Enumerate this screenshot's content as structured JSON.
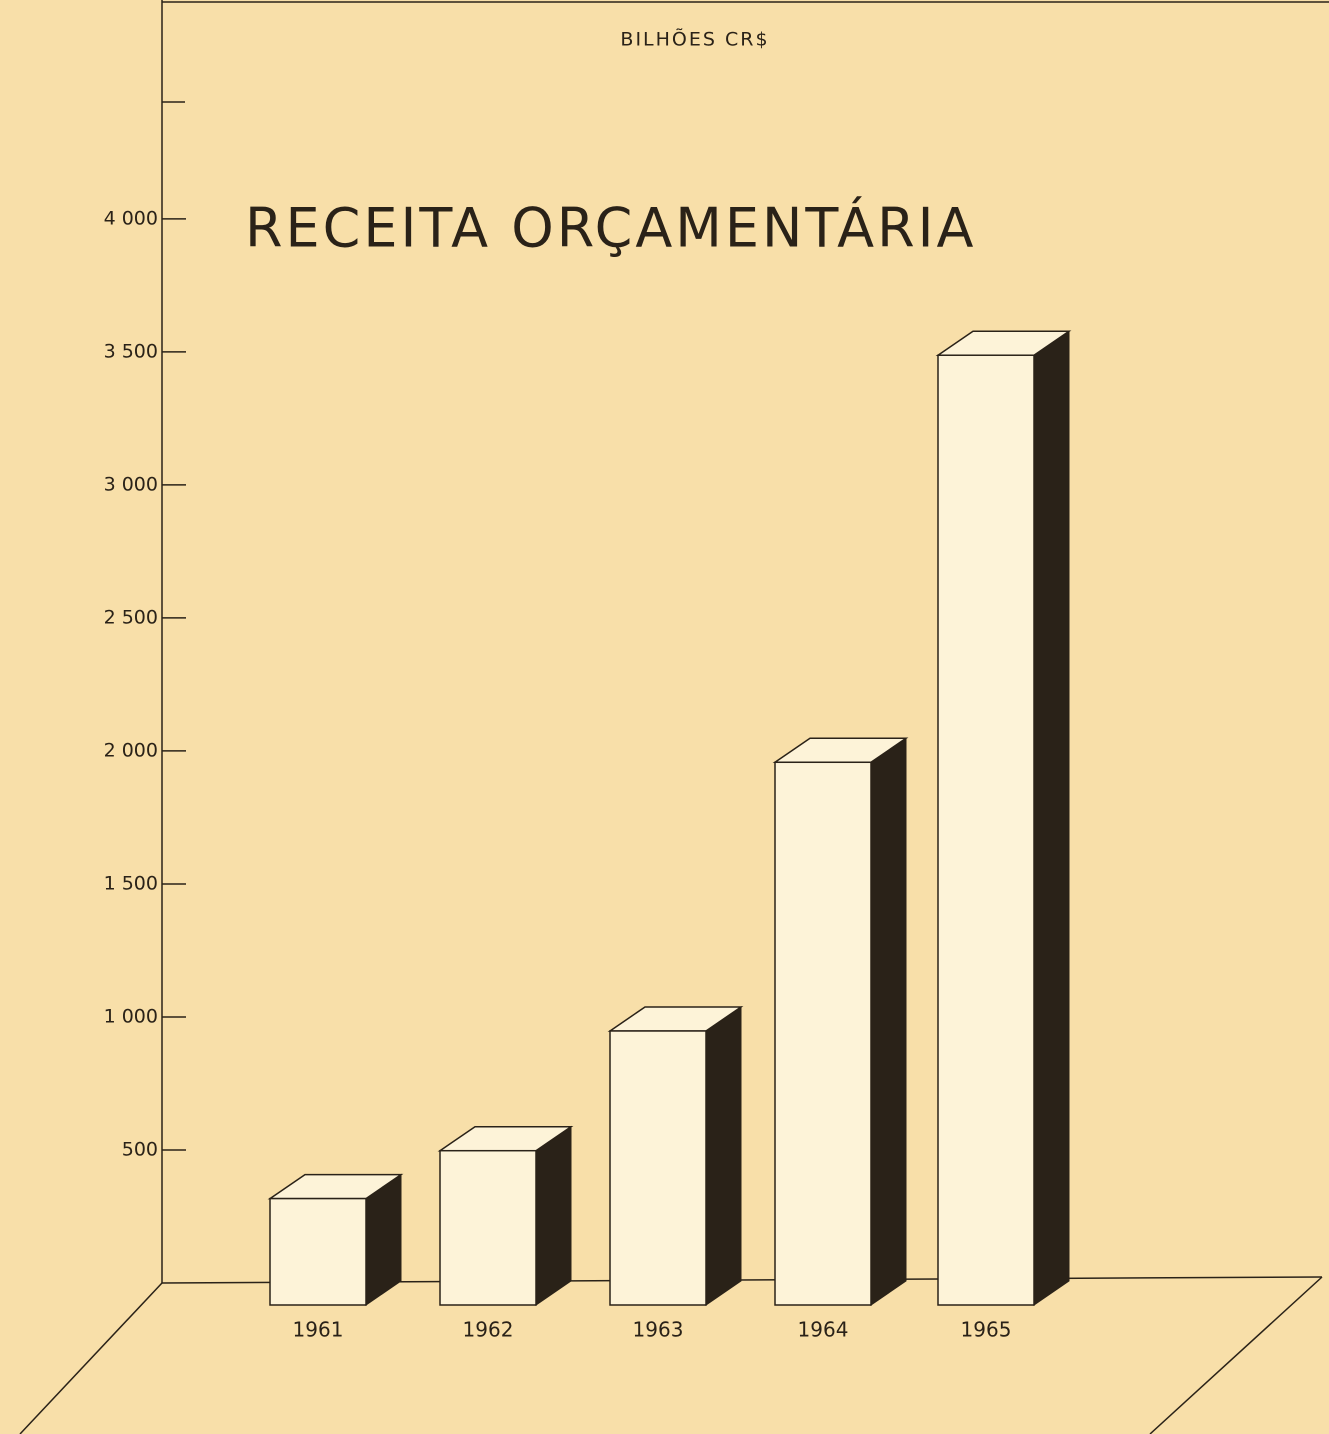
{
  "chart_data": {
    "type": "bar3d",
    "title": "RECEITA ORÇAMENTÁRIA",
    "y_label": "BILHÕES CR$",
    "categories": [
      "1961",
      "1962",
      "1963",
      "1964",
      "1965"
    ],
    "values": [
      400,
      580,
      1030,
      2040,
      3570
    ],
    "color": "#fdf3d8",
    "ylim": [
      0,
      4800
    ],
    "yticks": [
      500,
      {
        "value": 1000,
        "label": "1 000"
      },
      {
        "value": 1500,
        "label": "1 500"
      },
      {
        "value": 2000,
        "label": "2 000"
      },
      {
        "value": 2500,
        "label": "2 500"
      },
      {
        "value": 3000,
        "label": "3 000"
      },
      {
        "value": 3500,
        "label": "3 500"
      },
      {
        "value": 4000,
        "label": "4 000"
      }
    ],
    "grid": false
  }
}
